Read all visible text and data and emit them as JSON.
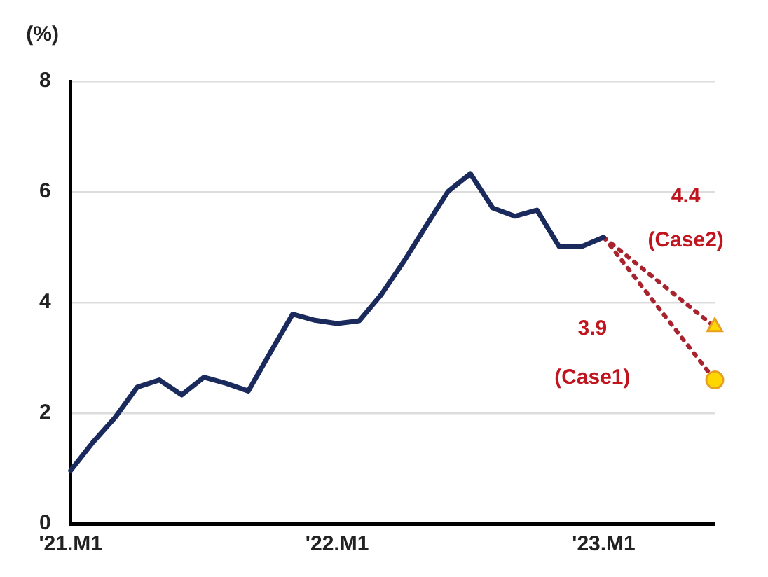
{
  "chart_data": {
    "type": "line",
    "ylabel": "(%)",
    "categories": [
      "'21.M1",
      null,
      null,
      null,
      null,
      null,
      null,
      null,
      null,
      null,
      null,
      null,
      "'22.M1",
      null,
      null,
      null,
      null,
      null,
      null,
      null,
      null,
      null,
      null,
      null,
      "'23.M1",
      null,
      null,
      null,
      null,
      null
    ],
    "series": [
      {
        "color": "#1b2a5c",
        "line_style": "solid",
        "marker": "none",
        "values": [
          0.96,
          1.47,
          1.92,
          2.47,
          2.6,
          2.33,
          2.65,
          2.54,
          2.4,
          3.1,
          3.79,
          3.68,
          3.62,
          3.67,
          4.15,
          4.74,
          5.38,
          6.01,
          6.33,
          5.71,
          5.56,
          5.67,
          5.01,
          5.01,
          5.18,
          null,
          null,
          null,
          null,
          null
        ]
      },
      {
        "color": "#a8232e",
        "line_style": "dotted",
        "marker": "triangle",
        "values": [
          null,
          null,
          null,
          null,
          null,
          null,
          null,
          null,
          null,
          null,
          null,
          null,
          null,
          null,
          null,
          null,
          null,
          null,
          null,
          null,
          null,
          null,
          null,
          null,
          5.18,
          null,
          null,
          null,
          null,
          3.56
        ]
      },
      {
        "color": "#a8232e",
        "line_style": "dotted",
        "marker": "circle",
        "values": [
          null,
          null,
          null,
          null,
          null,
          null,
          null,
          null,
          null,
          null,
          null,
          null,
          null,
          null,
          null,
          null,
          null,
          null,
          null,
          null,
          null,
          null,
          null,
          null,
          5.18,
          null,
          null,
          null,
          null,
          2.6
        ]
      }
    ],
    "ylim": [
      0,
      8
    ],
    "yticks": [
      0,
      2,
      4,
      6,
      8
    ],
    "grid": "y",
    "legend": false,
    "annotations": [
      "4.4",
      "(Case2)",
      "3.9",
      "(Case1)"
    ]
  }
}
